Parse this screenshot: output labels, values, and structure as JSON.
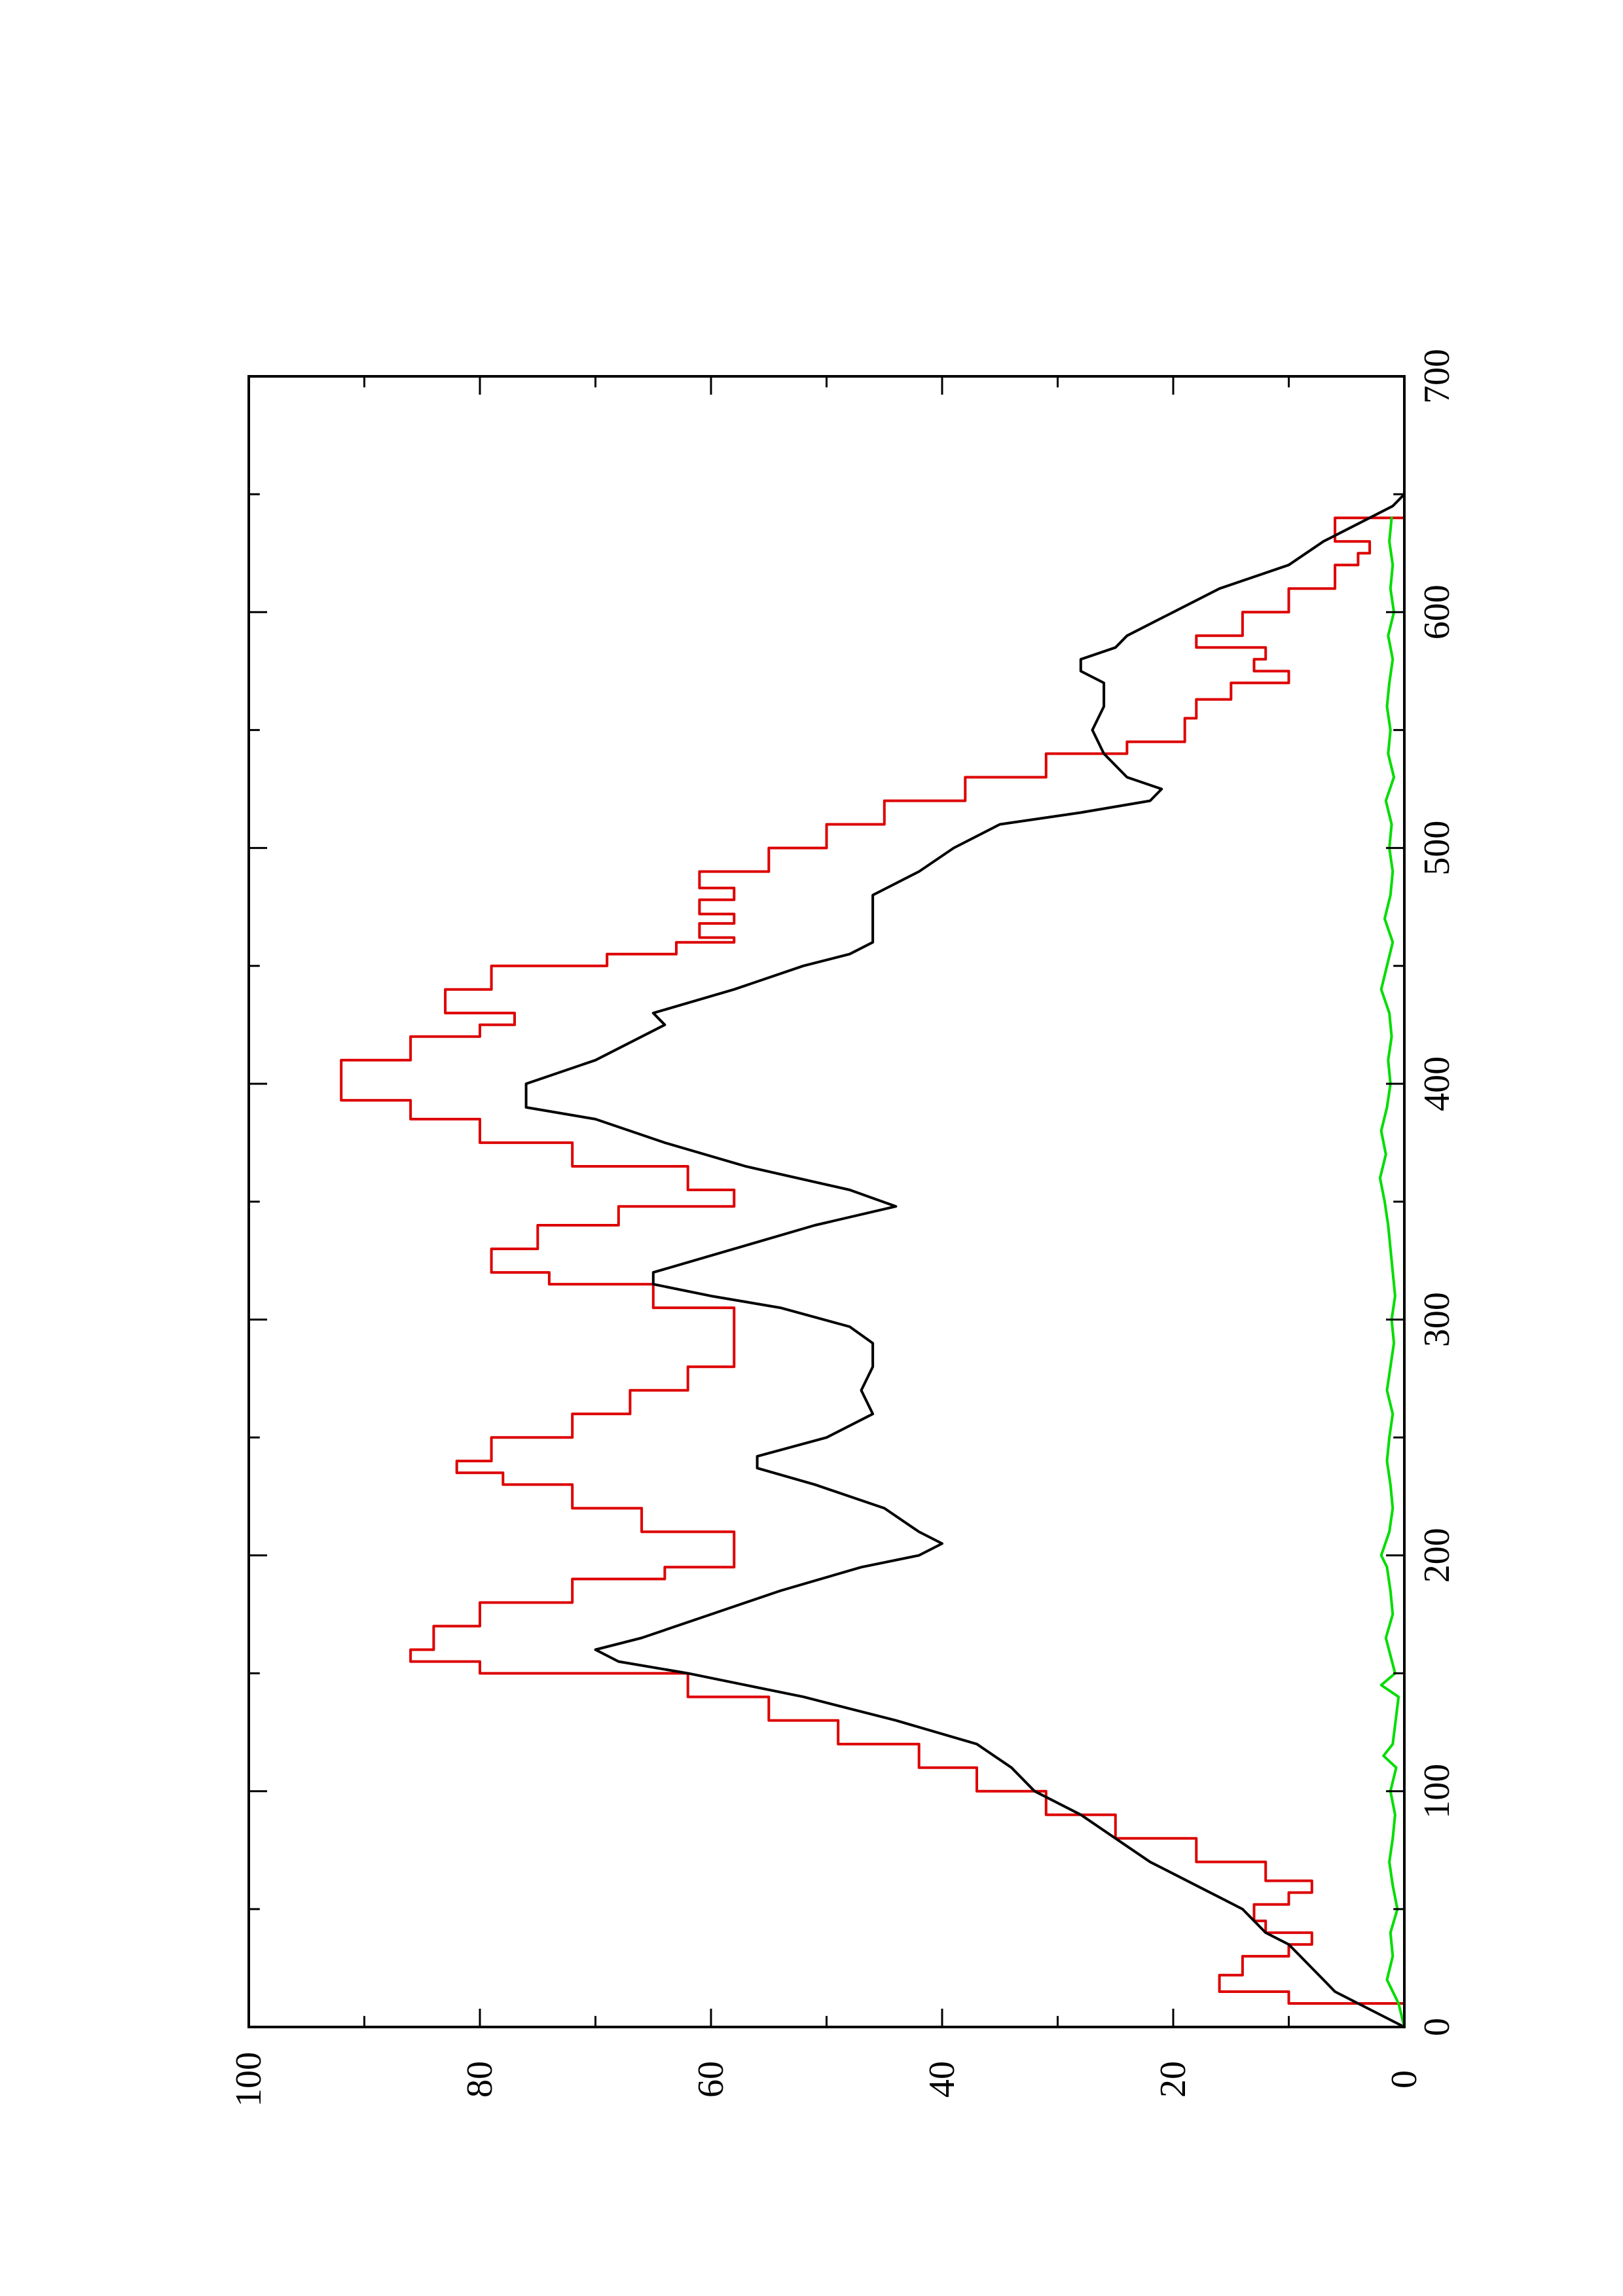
{
  "chart_data": {
    "type": "line",
    "orientation": "rotated-90-ccw",
    "title": "",
    "xlabel": "",
    "ylabel": "",
    "xlim": [
      0,
      700
    ],
    "ylim": [
      0,
      100
    ],
    "x_ticks": [
      0,
      100,
      200,
      300,
      400,
      500,
      600,
      700
    ],
    "y_ticks": [
      0,
      20,
      40,
      60,
      80,
      100
    ],
    "grid": false,
    "legend": "none",
    "series": [
      {
        "color": "#dd0000",
        "style": "step",
        "points": [
          [
            0,
            0
          ],
          [
            10,
            10
          ],
          [
            15,
            16
          ],
          [
            22,
            14
          ],
          [
            30,
            10
          ],
          [
            35,
            8
          ],
          [
            40,
            12
          ],
          [
            45,
            13
          ],
          [
            52,
            10
          ],
          [
            57,
            8
          ],
          [
            62,
            12
          ],
          [
            70,
            18
          ],
          [
            80,
            25
          ],
          [
            90,
            31
          ],
          [
            100,
            37
          ],
          [
            110,
            42
          ],
          [
            120,
            49
          ],
          [
            130,
            55
          ],
          [
            140,
            62
          ],
          [
            150,
            80
          ],
          [
            155,
            86
          ],
          [
            160,
            84
          ],
          [
            170,
            80
          ],
          [
            180,
            72
          ],
          [
            190,
            64
          ],
          [
            195,
            58
          ],
          [
            200,
            58
          ],
          [
            210,
            66
          ],
          [
            220,
            72
          ],
          [
            230,
            78
          ],
          [
            235,
            82
          ],
          [
            240,
            79
          ],
          [
            250,
            72
          ],
          [
            260,
            67
          ],
          [
            270,
            62
          ],
          [
            280,
            58
          ],
          [
            290,
            58
          ],
          [
            295,
            58
          ],
          [
            305,
            65
          ],
          [
            315,
            74
          ],
          [
            320,
            79
          ],
          [
            330,
            75
          ],
          [
            340,
            68
          ],
          [
            348,
            58
          ],
          [
            355,
            62
          ],
          [
            365,
            72
          ],
          [
            375,
            80
          ],
          [
            385,
            86
          ],
          [
            393,
            92
          ],
          [
            400,
            92
          ],
          [
            410,
            86
          ],
          [
            420,
            80
          ],
          [
            425,
            77
          ],
          [
            430,
            83
          ],
          [
            440,
            79
          ],
          [
            450,
            69
          ],
          [
            455,
            63
          ],
          [
            460,
            58
          ],
          [
            462,
            61
          ],
          [
            468,
            58
          ],
          [
            472,
            61
          ],
          [
            478,
            58
          ],
          [
            483,
            61
          ],
          [
            490,
            55
          ],
          [
            500,
            50
          ],
          [
            510,
            45
          ],
          [
            520,
            38
          ],
          [
            530,
            31
          ],
          [
            540,
            24
          ],
          [
            545,
            19
          ],
          [
            555,
            18
          ],
          [
            563,
            15
          ],
          [
            570,
            10
          ],
          [
            575,
            13
          ],
          [
            580,
            12
          ],
          [
            585,
            18
          ],
          [
            590,
            14
          ],
          [
            600,
            10
          ],
          [
            610,
            6
          ],
          [
            620,
            4
          ],
          [
            625,
            3
          ],
          [
            630,
            6
          ],
          [
            640,
            0
          ]
        ]
      },
      {
        "color": "#000000",
        "style": "line",
        "points": [
          [
            0,
            0
          ],
          [
            5,
            2
          ],
          [
            10,
            4
          ],
          [
            15,
            6
          ],
          [
            20,
            7
          ],
          [
            25,
            8
          ],
          [
            30,
            9
          ],
          [
            35,
            10
          ],
          [
            40,
            12
          ],
          [
            45,
            13
          ],
          [
            50,
            14
          ],
          [
            55,
            16
          ],
          [
            60,
            18
          ],
          [
            70,
            22
          ],
          [
            80,
            25
          ],
          [
            90,
            28
          ],
          [
            100,
            32
          ],
          [
            110,
            34
          ],
          [
            120,
            37
          ],
          [
            130,
            44
          ],
          [
            140,
            52
          ],
          [
            150,
            62
          ],
          [
            155,
            68
          ],
          [
            160,
            70
          ],
          [
            165,
            66
          ],
          [
            175,
            60
          ],
          [
            185,
            54
          ],
          [
            195,
            47
          ],
          [
            200,
            42
          ],
          [
            205,
            40
          ],
          [
            210,
            42
          ],
          [
            220,
            45
          ],
          [
            230,
            51
          ],
          [
            237,
            56
          ],
          [
            242,
            56
          ],
          [
            250,
            50
          ],
          [
            260,
            46
          ],
          [
            270,
            47
          ],
          [
            280,
            46
          ],
          [
            290,
            46
          ],
          [
            297,
            48
          ],
          [
            305,
            54
          ],
          [
            310,
            60
          ],
          [
            315,
            65
          ],
          [
            320,
            65
          ],
          [
            330,
            58
          ],
          [
            340,
            51
          ],
          [
            348,
            44
          ],
          [
            355,
            48
          ],
          [
            365,
            57
          ],
          [
            375,
            64
          ],
          [
            385,
            70
          ],
          [
            390,
            76
          ],
          [
            400,
            76
          ],
          [
            410,
            70
          ],
          [
            420,
            66
          ],
          [
            425,
            64
          ],
          [
            430,
            65
          ],
          [
            440,
            58
          ],
          [
            450,
            52
          ],
          [
            455,
            48
          ],
          [
            460,
            46
          ],
          [
            470,
            46
          ],
          [
            480,
            46
          ],
          [
            490,
            42
          ],
          [
            500,
            39
          ],
          [
            510,
            35
          ],
          [
            515,
            28
          ],
          [
            520,
            22
          ],
          [
            525,
            21
          ],
          [
            530,
            24
          ],
          [
            540,
            26
          ],
          [
            550,
            27
          ],
          [
            560,
            26
          ],
          [
            570,
            26
          ],
          [
            575,
            28
          ],
          [
            580,
            28
          ],
          [
            585,
            25
          ],
          [
            590,
            24
          ],
          [
            600,
            20
          ],
          [
            610,
            16
          ],
          [
            620,
            10
          ],
          [
            630,
            7
          ],
          [
            640,
            3
          ],
          [
            645,
            1
          ],
          [
            650,
            0
          ]
        ]
      },
      {
        "color": "#00dd00",
        "style": "line",
        "points": [
          [
            0,
            0
          ],
          [
            10,
            0.5
          ],
          [
            20,
            1.5
          ],
          [
            30,
            1
          ],
          [
            40,
            1.2
          ],
          [
            50,
            0.6
          ],
          [
            60,
            1
          ],
          [
            70,
            1.3
          ],
          [
            80,
            1
          ],
          [
            90,
            0.8
          ],
          [
            100,
            1.2
          ],
          [
            110,
            0.7
          ],
          [
            115,
            1.8
          ],
          [
            120,
            1
          ],
          [
            140,
            0.5
          ],
          [
            145,
            2
          ],
          [
            150,
            0.8
          ],
          [
            165,
            1.6
          ],
          [
            175,
            1
          ],
          [
            185,
            1.2
          ],
          [
            195,
            1.5
          ],
          [
            200,
            2
          ],
          [
            210,
            1.3
          ],
          [
            220,
            1
          ],
          [
            230,
            1.2
          ],
          [
            240,
            1.5
          ],
          [
            250,
            1.3
          ],
          [
            260,
            1
          ],
          [
            270,
            1.5
          ],
          [
            280,
            1.2
          ],
          [
            290,
            0.9
          ],
          [
            300,
            1.1
          ],
          [
            310,
            0.8
          ],
          [
            340,
            1.4
          ],
          [
            350,
            1.7
          ],
          [
            360,
            2.1
          ],
          [
            370,
            1.6
          ],
          [
            380,
            2
          ],
          [
            390,
            1.5
          ],
          [
            400,
            1.2
          ],
          [
            410,
            1.4
          ],
          [
            420,
            1.1
          ],
          [
            430,
            1.3
          ],
          [
            440,
            2
          ],
          [
            450,
            1.5
          ],
          [
            460,
            1
          ],
          [
            470,
            1.7
          ],
          [
            480,
            1.2
          ],
          [
            490,
            1
          ],
          [
            500,
            1.3
          ],
          [
            510,
            1.1
          ],
          [
            520,
            1.6
          ],
          [
            530,
            0.9
          ],
          [
            540,
            1.4
          ],
          [
            550,
            1.2
          ],
          [
            560,
            1.5
          ],
          [
            570,
            1.3
          ],
          [
            580,
            1
          ],
          [
            590,
            1.4
          ],
          [
            600,
            0.9
          ],
          [
            610,
            1.2
          ],
          [
            620,
            1
          ],
          [
            630,
            1.3
          ],
          [
            640,
            1.1
          ]
        ]
      }
    ]
  }
}
